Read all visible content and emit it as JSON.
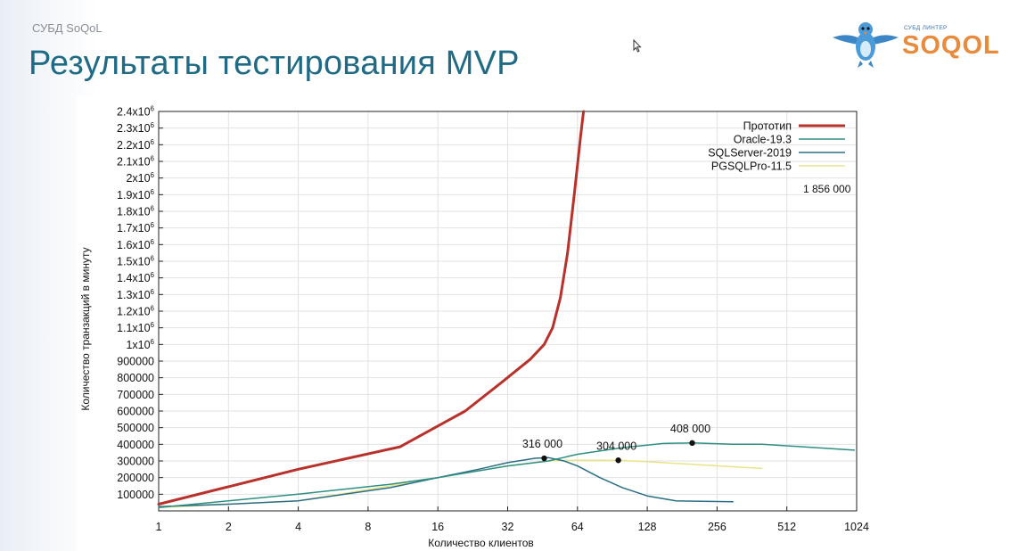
{
  "header": {
    "crumb": "СУБД SoQoL",
    "title": "Результаты тестирования MVP"
  },
  "logo": {
    "small_text": "СУБД ЛИНТЕР",
    "word": "SOQOL"
  },
  "colors": {
    "title": "#1f6b86",
    "prototype": "#b8312b",
    "oracle": "#2f8f82",
    "sqlserver": "#2c6e86",
    "pgsql": "#e8e48a"
  },
  "chart_data": {
    "type": "line",
    "xlabel": "Количество клиентов",
    "ylabel": "Количество транзакций в минуту",
    "x_scale": "log2",
    "xlim": [
      1,
      1024
    ],
    "ylim": [
      0,
      2400000
    ],
    "grid": true,
    "legend_position": "top-right",
    "x_ticks": [
      {
        "v": 1,
        "label": "1"
      },
      {
        "v": 2,
        "label": "2"
      },
      {
        "v": 4,
        "label": "4"
      },
      {
        "v": 8,
        "label": "8"
      },
      {
        "v": 16,
        "label": "16"
      },
      {
        "v": 32,
        "label": "32"
      },
      {
        "v": 64,
        "label": "64"
      },
      {
        "v": 128,
        "label": "128"
      },
      {
        "v": 256,
        "label": "256"
      },
      {
        "v": 512,
        "label": "512"
      },
      {
        "v": 1024,
        "label": "1024"
      }
    ],
    "y_ticks": [
      {
        "v": 100000,
        "label": "100000"
      },
      {
        "v": 200000,
        "label": "200000"
      },
      {
        "v": 300000,
        "label": "300000"
      },
      {
        "v": 400000,
        "label": "400000"
      },
      {
        "v": 500000,
        "label": "500000"
      },
      {
        "v": 600000,
        "label": "600000"
      },
      {
        "v": 700000,
        "label": "700000"
      },
      {
        "v": 800000,
        "label": "800000"
      },
      {
        "v": 900000,
        "label": "900000"
      },
      {
        "v": 1000000,
        "label": "1x10",
        "sup": "6"
      },
      {
        "v": 1100000,
        "label": "1.1x10",
        "sup": "6"
      },
      {
        "v": 1200000,
        "label": "1.2x10",
        "sup": "6"
      },
      {
        "v": 1300000,
        "label": "1.3x10",
        "sup": "6"
      },
      {
        "v": 1400000,
        "label": "1.4x10",
        "sup": "6"
      },
      {
        "v": 1500000,
        "label": "1.5x10",
        "sup": "6"
      },
      {
        "v": 1600000,
        "label": "1.6x10",
        "sup": "6"
      },
      {
        "v": 1700000,
        "label": "1.7x10",
        "sup": "6"
      },
      {
        "v": 1800000,
        "label": "1.8x10",
        "sup": "6"
      },
      {
        "v": 1900000,
        "label": "1.9x10",
        "sup": "6"
      },
      {
        "v": 2000000,
        "label": "2x10",
        "sup": "6"
      },
      {
        "v": 2100000,
        "label": "2.1x10",
        "sup": "6"
      },
      {
        "v": 2200000,
        "label": "2.2x10",
        "sup": "6"
      },
      {
        "v": 2300000,
        "label": "2.3x10",
        "sup": "6"
      },
      {
        "v": 2400000,
        "label": "2.4x10",
        "sup": "6"
      }
    ],
    "series": [
      {
        "name": "Прототип",
        "key": "prototype",
        "width": 3,
        "points": [
          [
            1,
            40000
          ],
          [
            2,
            145000
          ],
          [
            4,
            250000
          ],
          [
            11,
            385000
          ],
          [
            21,
            600000
          ],
          [
            30,
            770000
          ],
          [
            40,
            910000
          ],
          [
            46,
            1000000
          ],
          [
            50,
            1100000
          ],
          [
            54,
            1280000
          ],
          [
            58,
            1550000
          ],
          [
            62,
            1900000
          ],
          [
            66,
            2250000
          ],
          [
            68,
            2400000
          ]
        ]
      },
      {
        "name": "Oracle-19.3",
        "key": "oracle",
        "width": 1.5,
        "points": [
          [
            1,
            20000
          ],
          [
            2,
            60000
          ],
          [
            4,
            100000
          ],
          [
            10,
            160000
          ],
          [
            16,
            200000
          ],
          [
            32,
            270000
          ],
          [
            48,
            300000
          ],
          [
            64,
            340000
          ],
          [
            100,
            380000
          ],
          [
            150,
            405000
          ],
          [
            200,
            408000
          ],
          [
            300,
            400000
          ],
          [
            400,
            400000
          ],
          [
            600,
            385000
          ],
          [
            1000,
            365000
          ]
        ]
      },
      {
        "name": "SQLServer-2019",
        "key": "sqlserver",
        "width": 1.5,
        "points": [
          [
            1,
            25000
          ],
          [
            2,
            40000
          ],
          [
            4,
            60000
          ],
          [
            10,
            140000
          ],
          [
            16,
            200000
          ],
          [
            24,
            250000
          ],
          [
            32,
            290000
          ],
          [
            42,
            316000
          ],
          [
            48,
            320000
          ],
          [
            56,
            300000
          ],
          [
            64,
            270000
          ],
          [
            80,
            200000
          ],
          [
            100,
            140000
          ],
          [
            128,
            90000
          ],
          [
            170,
            60000
          ],
          [
            300,
            55000
          ]
        ]
      },
      {
        "name": "PGSQLPro-11.5",
        "key": "pgsql",
        "width": 1.5,
        "points": [
          [
            1,
            20000
          ],
          [
            2,
            40000
          ],
          [
            4,
            60000
          ],
          [
            10,
            150000
          ],
          [
            16,
            200000
          ],
          [
            32,
            270000
          ],
          [
            48,
            300000
          ],
          [
            64,
            305000
          ],
          [
            96,
            304000
          ],
          [
            128,
            295000
          ],
          [
            200,
            280000
          ],
          [
            300,
            265000
          ],
          [
            400,
            255000
          ]
        ]
      }
    ],
    "annotations": [
      {
        "x": 46,
        "y": 316000,
        "label": "316 000"
      },
      {
        "x": 96,
        "y": 304000,
        "label": "304 000"
      },
      {
        "x": 200,
        "y": 408000,
        "label": "408 000"
      }
    ],
    "extra_label": "1 856 000"
  }
}
